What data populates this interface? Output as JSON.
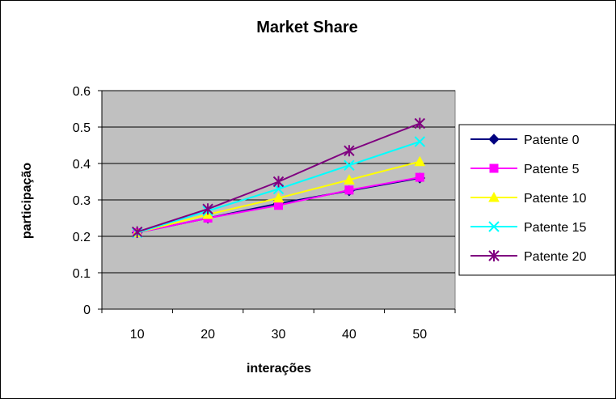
{
  "chart_data": {
    "type": "line",
    "title": "Market Share",
    "xlabel": "interações",
    "ylabel": "participação",
    "categories": [
      "10",
      "20",
      "30",
      "40",
      "50"
    ],
    "ylim": [
      0,
      0.6
    ],
    "yticks": [
      "0",
      "0.1",
      "0.2",
      "0.3",
      "0.4",
      "0.5",
      "0.6"
    ],
    "grid": true,
    "legend_position": "right",
    "plot_background": "#c0c0c0",
    "series": [
      {
        "name": "Patente 0",
        "values": [
          0.21,
          0.25,
          0.29,
          0.325,
          0.36
        ],
        "color": "#000080",
        "marker": "diamond"
      },
      {
        "name": "Patente 5",
        "values": [
          0.21,
          0.25,
          0.285,
          0.327,
          0.362
        ],
        "color": "#ff00ff",
        "marker": "square"
      },
      {
        "name": "Patente 10",
        "values": [
          0.21,
          0.26,
          0.305,
          0.355,
          0.405
        ],
        "color": "#ffff00",
        "marker": "triangle"
      },
      {
        "name": "Patente 15",
        "values": [
          0.21,
          0.27,
          0.33,
          0.395,
          0.46
        ],
        "color": "#00ffff",
        "marker": "x"
      },
      {
        "name": "Patente 20",
        "values": [
          0.212,
          0.275,
          0.35,
          0.435,
          0.51
        ],
        "color": "#800080",
        "marker": "star"
      }
    ]
  }
}
